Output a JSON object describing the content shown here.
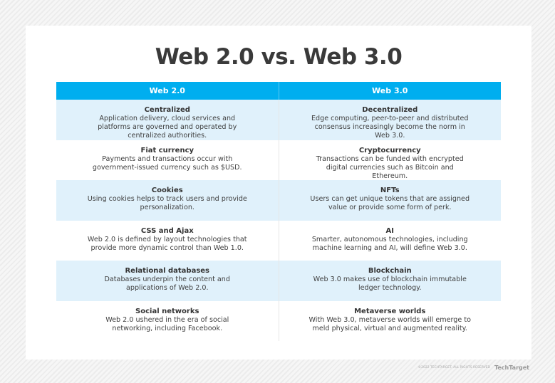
{
  "title": "Web 2.0 vs. Web 3.0",
  "columns": [
    "Web 2.0",
    "Web 3.0"
  ],
  "rows": [
    [
      {
        "h": "Centralized",
        "d": "Application delivery, cloud services and platforms are governed and operated by centralized authorities."
      },
      {
        "h": "Decentralized",
        "d": "Edge computing, peer-to-peer and distributed consensus increasingly become the norm in Web 3.0."
      }
    ],
    [
      {
        "h": "Fiat currency",
        "d": "Payments and transactions occur with government-issued currency such as $USD."
      },
      {
        "h": "Cryptocurrency",
        "d": "Transactions can be funded with encrypted digital currencies such as Bitcoin and Ethereum."
      }
    ],
    [
      {
        "h": "Cookies",
        "d": "Using cookies helps to track users and provide personalization."
      },
      {
        "h": "NFTs",
        "d": "Users can get unique tokens that are assigned value or provide some form of perk."
      }
    ],
    [
      {
        "h": "CSS and Ajax",
        "d": "Web 2.0 is defined by layout technologies that provide more dynamic control than Web 1.0."
      },
      {
        "h": "AI",
        "d": "Smarter, autonomous technologies, including machine learning and AI, will define Web 3.0."
      }
    ],
    [
      {
        "h": "Relational databases",
        "d": "Databases underpin the content and applications of Web 2.0."
      },
      {
        "h": "Blockchain",
        "d": "Web 3.0 makes use of blockchain immutable ledger technology."
      }
    ],
    [
      {
        "h": "Social networks",
        "d": "Web 2.0 ushered in the era of social networking, including Facebook."
      },
      {
        "h": "Metaverse worlds",
        "d": "With Web 3.0, metaverse worlds will emerge to meld physical, virtual and augmented reality."
      }
    ]
  ],
  "footer": {
    "copyright": "©2022 TECHTARGET. ALL RIGHTS RESERVED",
    "logo": "TechTarget"
  }
}
